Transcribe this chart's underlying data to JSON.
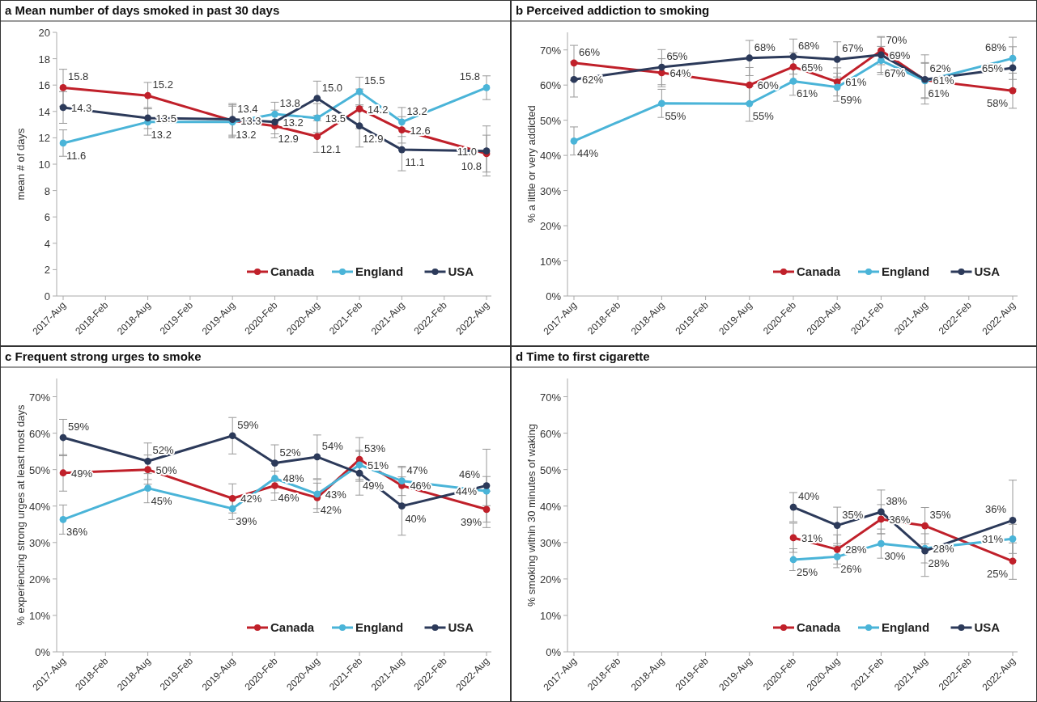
{
  "chart_data": [
    {
      "type": "line",
      "title": "a Mean number of days smoked in past 30 days",
      "ylabel": "mean # of days",
      "categories": [
        "2017-Aug",
        "2018-Feb",
        "2018-Aug",
        "2019-Feb",
        "2019-Aug",
        "2020-Feb",
        "2020-Aug",
        "2021-Feb",
        "2021-Aug",
        "2022-Feb",
        "2022-Aug"
      ],
      "ylim": [
        0,
        20
      ],
      "yticks": [
        0,
        2,
        4,
        6,
        8,
        10,
        12,
        14,
        16,
        18,
        20
      ],
      "legend": "bottom right",
      "marker": "circle",
      "series": [
        {
          "name": "Canada",
          "color": "#c0202a",
          "values": [
            15.8,
            null,
            15.2,
            null,
            13.3,
            12.9,
            12.1,
            14.2,
            12.6,
            null,
            10.8
          ],
          "errors": [
            1.4,
            null,
            1.0,
            null,
            1.2,
            0.9,
            1.2,
            1.5,
            1.0,
            null,
            1.4
          ],
          "value_labels": [
            "15.8",
            null,
            "15.2",
            null,
            "13.3",
            "12.9",
            "12.1",
            "14.2",
            "12.6",
            null,
            "10.8"
          ]
        },
        {
          "name": "England",
          "color": "#4ab4d8",
          "values": [
            11.6,
            null,
            13.2,
            null,
            13.2,
            13.8,
            13.5,
            15.5,
            13.2,
            null,
            15.8
          ],
          "errors": [
            1.0,
            null,
            1.0,
            null,
            1.2,
            0.9,
            1.1,
            1.1,
            1.1,
            null,
            0.9
          ],
          "value_labels": [
            "11.6",
            null,
            "13.2",
            null,
            "13.2",
            "13.8",
            "13.5",
            "15.5",
            "13.2",
            null,
            "15.8"
          ]
        },
        {
          "name": "USA",
          "color": "#2c3a5a",
          "values": [
            14.3,
            null,
            13.5,
            null,
            13.4,
            13.2,
            15.0,
            12.9,
            11.1,
            null,
            11.0
          ],
          "errors": [
            1.2,
            null,
            0.8,
            null,
            1.2,
            0.9,
            1.3,
            1.6,
            1.6,
            null,
            1.9
          ],
          "value_labels": [
            "14.3",
            null,
            "13.5",
            null,
            "13.4",
            "13.2",
            "15.0",
            "12.9",
            "11.1",
            null,
            "11.0"
          ]
        }
      ]
    },
    {
      "type": "line",
      "title": "b Perceived addiction to smoking",
      "ylabel": "% a little or very addicted",
      "categories": [
        "2017-Aug",
        "2018-Feb",
        "2018-Aug",
        "2019-Feb",
        "2019-Aug",
        "2020-Feb",
        "2020-Aug",
        "2021-Feb",
        "2021-Aug",
        "2022-Feb",
        "2022-Aug"
      ],
      "ylim": [
        0,
        75
      ],
      "yticks": [
        {
          "value": 0,
          "label": "0%"
        },
        {
          "value": 10,
          "label": "10%"
        },
        {
          "value": 20,
          "label": "20%"
        },
        {
          "value": 30,
          "label": "30%"
        },
        {
          "value": 40,
          "label": "40%"
        },
        {
          "value": 50,
          "label": "50%"
        },
        {
          "value": 60,
          "label": "60%"
        },
        {
          "value": 70,
          "label": "70%"
        }
      ],
      "legend": "bottom right",
      "marker": "circle",
      "series": [
        {
          "name": "Canada",
          "color": "#c0202a",
          "values": [
            66.3,
            null,
            63.5,
            null,
            60.0,
            65.2,
            60.9,
            69.8,
            61.4,
            null,
            58.4
          ],
          "errors": [
            5,
            null,
            4,
            null,
            5,
            4,
            4,
            4,
            5,
            null,
            5
          ],
          "value_labels": [
            "66%",
            null,
            "64%",
            null,
            "60%",
            "65%",
            "61%",
            "70%",
            "61%",
            null,
            "58%"
          ]
        },
        {
          "name": "England",
          "color": "#4ab4d8",
          "values": [
            44.1,
            null,
            54.8,
            null,
            54.7,
            61.1,
            59.4,
            67.0,
            61.2,
            null,
            67.6
          ],
          "errors": [
            4,
            null,
            4,
            null,
            5,
            4,
            4,
            4,
            5,
            null,
            6
          ],
          "value_labels": [
            "44%",
            null,
            "55%",
            null,
            "55%",
            "61%",
            "59%",
            "67%",
            "61%",
            null,
            "68%"
          ]
        },
        {
          "name": "USA",
          "color": "#2c3a5a",
          "values": [
            61.6,
            null,
            65.1,
            null,
            67.7,
            68.1,
            67.3,
            68.6,
            61.6,
            null,
            64.9
          ],
          "errors": [
            5,
            null,
            5,
            null,
            5,
            5,
            5,
            5,
            7,
            null,
            6
          ],
          "value_labels": [
            "62%",
            null,
            "65%",
            null,
            "68%",
            "68%",
            "67%",
            "69%",
            "62%",
            null,
            "65%"
          ]
        }
      ]
    },
    {
      "type": "line",
      "title": "c Frequent strong urges to smoke",
      "ylabel": "% experiencing strong urges at least most days",
      "categories": [
        "2017-Aug",
        "2018-Feb",
        "2018-Aug",
        "2019-Feb",
        "2019-Aug",
        "2020-Feb",
        "2020-Aug",
        "2021-Feb",
        "2021-Aug",
        "2022-Feb",
        "2022-Aug"
      ],
      "ylim": [
        0,
        75
      ],
      "yticks": [
        {
          "value": 0,
          "label": "0%"
        },
        {
          "value": 10,
          "label": "10%"
        },
        {
          "value": 20,
          "label": "20%"
        },
        {
          "value": 30,
          "label": "30%"
        },
        {
          "value": 40,
          "label": "40%"
        },
        {
          "value": 50,
          "label": "50%"
        },
        {
          "value": 60,
          "label": "60%"
        },
        {
          "value": 70,
          "label": "70%"
        }
      ],
      "legend": "bottom right",
      "marker": "circle",
      "series": [
        {
          "name": "Canada",
          "color": "#c0202a",
          "values": [
            49.1,
            null,
            50.0,
            null,
            42.1,
            45.6,
            42.3,
            52.8,
            45.6,
            null,
            39.1
          ],
          "errors": [
            5,
            null,
            4,
            null,
            4,
            4,
            4,
            6,
            5,
            null,
            5
          ],
          "value_labels": [
            "49%",
            null,
            "50%",
            null,
            "42%",
            "46%",
            "42%",
            "53%",
            "46%",
            null,
            "39%"
          ]
        },
        {
          "name": "England",
          "color": "#4ab4d8",
          "values": [
            36.3,
            null,
            44.9,
            null,
            39.3,
            47.6,
            43.3,
            51.3,
            46.9,
            null,
            44.1
          ],
          "errors": [
            4,
            null,
            4,
            null,
            3,
            4,
            4,
            4,
            4,
            null,
            4
          ],
          "value_labels": [
            "36%",
            null,
            "45%",
            null,
            "39%",
            "48%",
            "43%",
            "51%",
            "47%",
            null,
            "44%"
          ]
        },
        {
          "name": "USA",
          "color": "#2c3a5a",
          "values": [
            58.8,
            null,
            52.3,
            null,
            59.3,
            51.8,
            53.5,
            49.0,
            40.0,
            null,
            45.6
          ],
          "errors": [
            5,
            null,
            5,
            null,
            5,
            5,
            6,
            6,
            8,
            null,
            10
          ],
          "value_labels": [
            "59%",
            null,
            "52%",
            null,
            "59%",
            "52%",
            "54%",
            "49%",
            "40%",
            null,
            "46%"
          ]
        }
      ]
    },
    {
      "type": "line",
      "title": "d Time to first cigarette",
      "ylabel": "% smoking within 30 minutes of waking",
      "categories": [
        "2017-Aug",
        "2018-Feb",
        "2018-Aug",
        "2019-Feb",
        "2019-Aug",
        "2020-Feb",
        "2020-Aug",
        "2021-Feb",
        "2021-Aug",
        "2022-Feb",
        "2022-Aug"
      ],
      "ylim": [
        0,
        75
      ],
      "yticks": [
        {
          "value": 0,
          "label": "0%"
        },
        {
          "value": 10,
          "label": "10%"
        },
        {
          "value": 20,
          "label": "20%"
        },
        {
          "value": 30,
          "label": "30%"
        },
        {
          "value": 40,
          "label": "40%"
        },
        {
          "value": 50,
          "label": "50%"
        },
        {
          "value": 60,
          "label": "60%"
        },
        {
          "value": 70,
          "label": "70%"
        }
      ],
      "legend": "bottom right",
      "marker": "circle",
      "series": [
        {
          "name": "Canada",
          "color": "#c0202a",
          "values": [
            null,
            null,
            null,
            null,
            null,
            31.3,
            28.1,
            36.4,
            34.6,
            null,
            24.9
          ],
          "errors": [
            null,
            null,
            null,
            null,
            null,
            4,
            4,
            4,
            5,
            null,
            5
          ],
          "value_labels": [
            null,
            null,
            null,
            null,
            null,
            "31%",
            "28%",
            "36%",
            "35%",
            null,
            "25%"
          ]
        },
        {
          "name": "England",
          "color": "#4ab4d8",
          "values": [
            null,
            null,
            null,
            null,
            null,
            25.3,
            26.1,
            29.7,
            28.4,
            null,
            31.0
          ],
          "errors": [
            null,
            null,
            null,
            null,
            null,
            3,
            3,
            4,
            4,
            null,
            4
          ],
          "value_labels": [
            null,
            null,
            null,
            null,
            null,
            "25%",
            "26%",
            "30%",
            "28%",
            null,
            "31%"
          ]
        },
        {
          "name": "USA",
          "color": "#2c3a5a",
          "values": [
            null,
            null,
            null,
            null,
            null,
            39.7,
            34.7,
            38.4,
            27.7,
            null,
            36.1
          ],
          "errors": [
            null,
            null,
            null,
            null,
            null,
            4,
            5,
            6,
            7,
            null,
            11
          ],
          "value_labels": [
            null,
            null,
            null,
            null,
            null,
            "40%",
            "35%",
            "38%",
            "28%",
            null,
            "36%"
          ]
        }
      ]
    }
  ]
}
